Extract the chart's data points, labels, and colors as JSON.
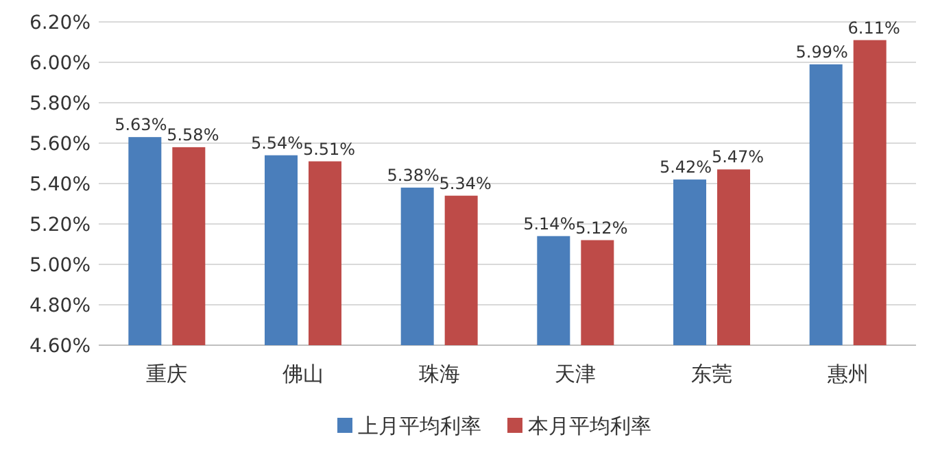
{
  "chart_data": {
    "type": "bar",
    "categories": [
      "重庆",
      "佛山",
      "珠海",
      "天津",
      "东莞",
      "惠州"
    ],
    "series": [
      {
        "name": "上月平均利率",
        "color": "#4a7ebb",
        "values": [
          5.63,
          5.54,
          5.38,
          5.14,
          5.42,
          5.99
        ],
        "value_labels": [
          "5.63%",
          "5.54%",
          "5.38%",
          "5.14%",
          "5.42%",
          "5.99%"
        ]
      },
      {
        "name": "本月平均利率",
        "color": "#be4b48",
        "values": [
          5.58,
          5.51,
          5.34,
          5.12,
          5.47,
          6.11
        ],
        "value_labels": [
          "5.58%",
          "5.51%",
          "5.34%",
          "5.12%",
          "5.47%",
          "6.11%"
        ]
      }
    ],
    "ylim": [
      4.6,
      6.2
    ],
    "yticks": [
      {
        "value": 4.6,
        "label": "4.60%"
      },
      {
        "value": 4.8,
        "label": "4.80%"
      },
      {
        "value": 5.0,
        "label": "5.00%"
      },
      {
        "value": 5.2,
        "label": "5.20%"
      },
      {
        "value": 5.4,
        "label": "5.40%"
      },
      {
        "value": 5.6,
        "label": "5.60%"
      },
      {
        "value": 5.8,
        "label": "5.80%"
      },
      {
        "value": 6.0,
        "label": "6.00%"
      },
      {
        "value": 6.2,
        "label": "6.20%"
      }
    ],
    "grid": "y",
    "legend": "bottom"
  }
}
